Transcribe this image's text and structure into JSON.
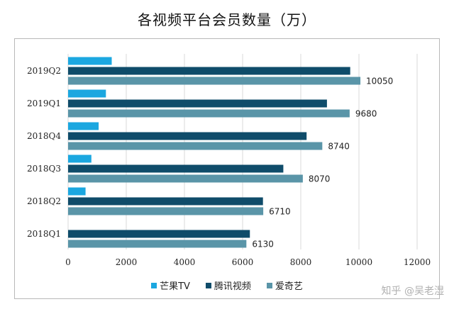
{
  "chart_data": {
    "type": "bar",
    "orientation": "horizontal",
    "title": "各视频平台会员数量（万）",
    "categories": [
      "2019Q2",
      "2019Q1",
      "2018Q4",
      "2018Q3",
      "2018Q2",
      "2018Q1"
    ],
    "series": [
      {
        "name": "芒果TV",
        "color": "#1ba7e0",
        "values": [
          1500,
          1300,
          1050,
          800,
          600,
          0
        ]
      },
      {
        "name": "腾讯视频",
        "color": "#0f4c6a",
        "values": [
          9700,
          8900,
          8200,
          7400,
          6700,
          6250
        ]
      },
      {
        "name": "爱奇艺",
        "color": "#5a95a8",
        "values": [
          10050,
          9680,
          8740,
          8070,
          6710,
          6130
        ],
        "labels": [
          "10050",
          "9680",
          "8740",
          "8070",
          "6710",
          "6130"
        ]
      }
    ],
    "xlim": [
      0,
      12000
    ],
    "xticks": [
      "0",
      "2000",
      "4000",
      "6000",
      "8000",
      "10000",
      "12000"
    ],
    "grid": true,
    "legend_position": "bottom"
  },
  "watermark": "知乎 @吴老湿"
}
